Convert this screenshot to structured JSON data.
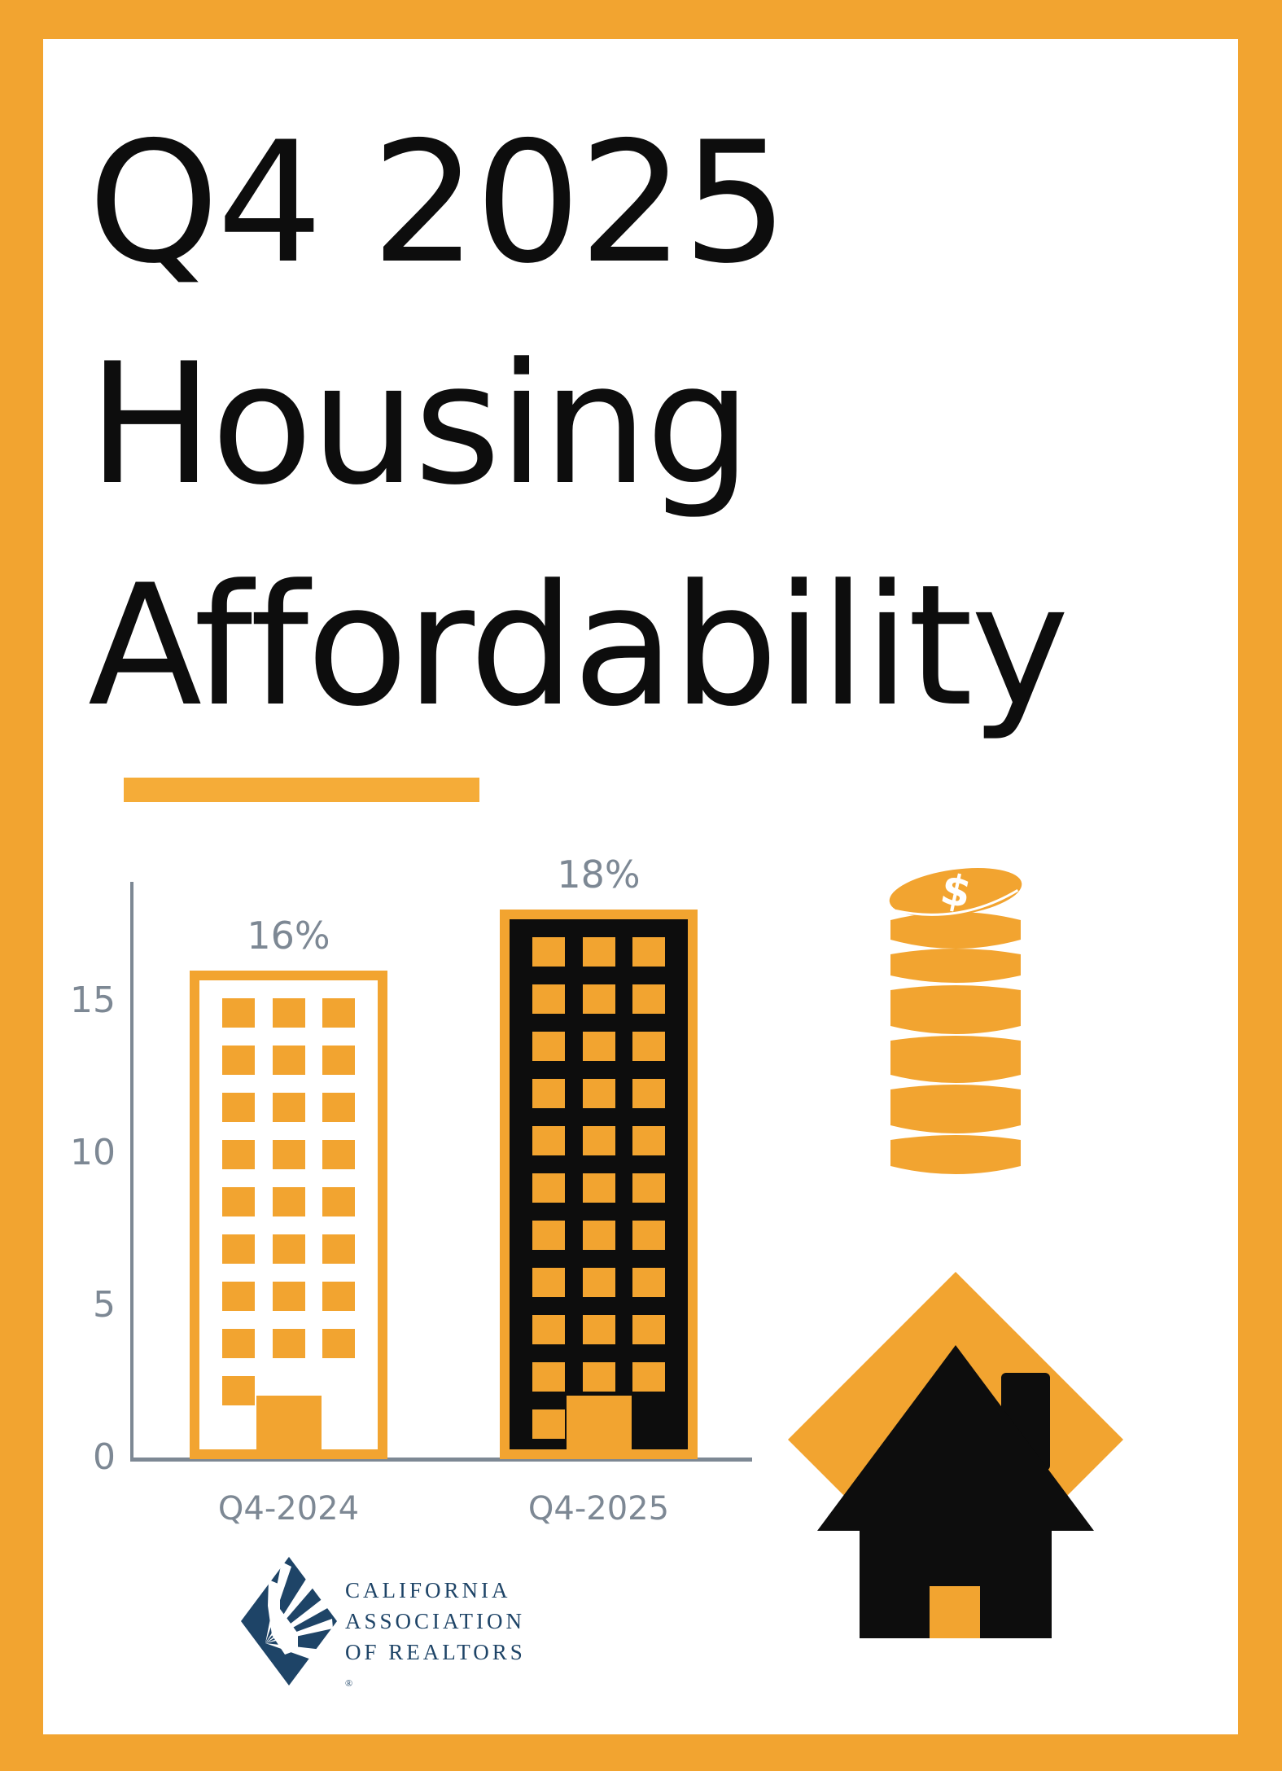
{
  "colors": {
    "orange": "#F2A430",
    "orange_underline": "#F5AC38",
    "black": "#0D0D0D",
    "gray": "#7D8894",
    "navy": "#1E4467",
    "white": "#FFFFFF"
  },
  "title": {
    "line1": "Q4 2025",
    "line2": "Housing",
    "line3": "Affordability"
  },
  "chart_data": {
    "type": "bar",
    "title": "",
    "xlabel": "",
    "ylabel": "",
    "categories": [
      "Q4-2024",
      "Q4-2025"
    ],
    "values": [
      16,
      18
    ],
    "value_labels": [
      "16%",
      "18%"
    ],
    "yticks": [
      0,
      5,
      10,
      15
    ],
    "ylim": [
      0,
      19
    ],
    "grid": false,
    "legend": false,
    "bar_variants": [
      "outline-building",
      "filled-building"
    ],
    "building_floors": [
      8,
      10
    ]
  },
  "icons": {
    "coins": {
      "label": "coin-stack-icon",
      "symbol": "$"
    },
    "house": {
      "label": "house-icon"
    }
  },
  "logo": {
    "line1": "CALIFORNIA",
    "line2": "ASSOCIATION",
    "line3": "OF REALTORS",
    "registered": "®"
  }
}
